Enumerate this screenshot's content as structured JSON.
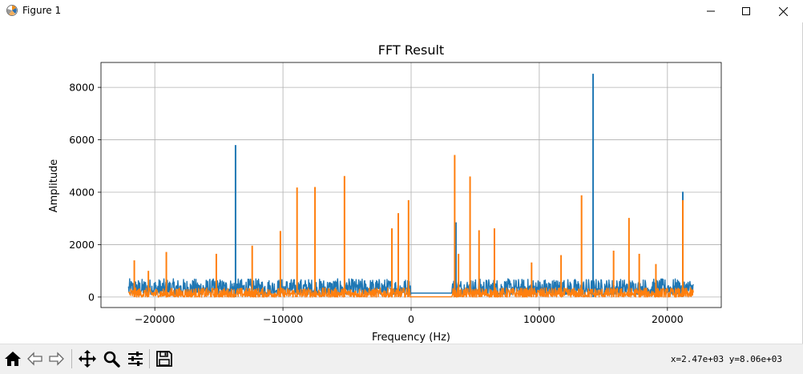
{
  "window": {
    "title": "Figure 1",
    "controls": [
      "minimize",
      "maximize",
      "close"
    ]
  },
  "toolbar": {
    "buttons": [
      {
        "name": "home",
        "icon": "home-icon"
      },
      {
        "name": "back",
        "icon": "back-arrow-icon"
      },
      {
        "name": "forward",
        "icon": "forward-arrow-icon"
      },
      {
        "name": "pan",
        "icon": "move-icon"
      },
      {
        "name": "zoom",
        "icon": "zoom-icon"
      },
      {
        "name": "configure-subplots",
        "icon": "sliders-icon"
      },
      {
        "name": "save",
        "icon": "save-icon"
      }
    ],
    "coordinates": "x=2.47e+03 y=8.06e+03"
  },
  "chart_data": {
    "type": "line",
    "title": "FFT Result",
    "xlabel": "Frequency (Hz)",
    "ylabel": "Amplitude",
    "xlim": [
      -24200,
      24200
    ],
    "ylim": [
      -400,
      8950
    ],
    "xticks": [
      -20000,
      -10000,
      0,
      10000,
      20000
    ],
    "xtick_labels": [
      "−20000",
      "−10000",
      "0",
      "10000",
      "20000"
    ],
    "yticks": [
      0,
      2000,
      4000,
      6000,
      8000
    ],
    "ytick_labels": [
      "0",
      "2000",
      "4000",
      "6000",
      "8000"
    ],
    "grid": true,
    "legend": "none",
    "series": [
      {
        "color": "#1f77b4",
        "x_range": [
          -22050,
          22050
        ],
        "silent_band": [
          0,
          3200
        ],
        "silent_level": 150,
        "noise_floor": [
          100,
          700
        ],
        "peaks": [
          {
            "x": -13700,
            "y": 5800
          },
          {
            "x": 3500,
            "y": 2850
          },
          {
            "x": 14200,
            "y": 8520
          },
          {
            "x": 21200,
            "y": 4020
          }
        ]
      },
      {
        "color": "#ff7f0e",
        "x_range": [
          -22050,
          22050
        ],
        "silent_band": [
          0,
          3200
        ],
        "silent_level": 10,
        "noise_floor": [
          0,
          350
        ],
        "peaks": [
          {
            "x": -21600,
            "y": 1400
          },
          {
            "x": -20500,
            "y": 1000
          },
          {
            "x": -19100,
            "y": 1720
          },
          {
            "x": -15200,
            "y": 1650
          },
          {
            "x": -12400,
            "y": 1960
          },
          {
            "x": -10200,
            "y": 2520
          },
          {
            "x": -8900,
            "y": 4180
          },
          {
            "x": -7500,
            "y": 4200
          },
          {
            "x": -5200,
            "y": 4620
          },
          {
            "x": -1500,
            "y": 2620
          },
          {
            "x": -1000,
            "y": 3200
          },
          {
            "x": -200,
            "y": 3700
          },
          {
            "x": 3400,
            "y": 5420
          },
          {
            "x": 3700,
            "y": 1650
          },
          {
            "x": 4600,
            "y": 4600
          },
          {
            "x": 5300,
            "y": 2550
          },
          {
            "x": 6500,
            "y": 2620
          },
          {
            "x": 9400,
            "y": 1320
          },
          {
            "x": 11700,
            "y": 1600
          },
          {
            "x": 13300,
            "y": 3880
          },
          {
            "x": 15800,
            "y": 1770
          },
          {
            "x": 17000,
            "y": 3020
          },
          {
            "x": 17800,
            "y": 1650
          },
          {
            "x": 19100,
            "y": 1260
          },
          {
            "x": 21200,
            "y": 3700
          }
        ]
      }
    ]
  }
}
